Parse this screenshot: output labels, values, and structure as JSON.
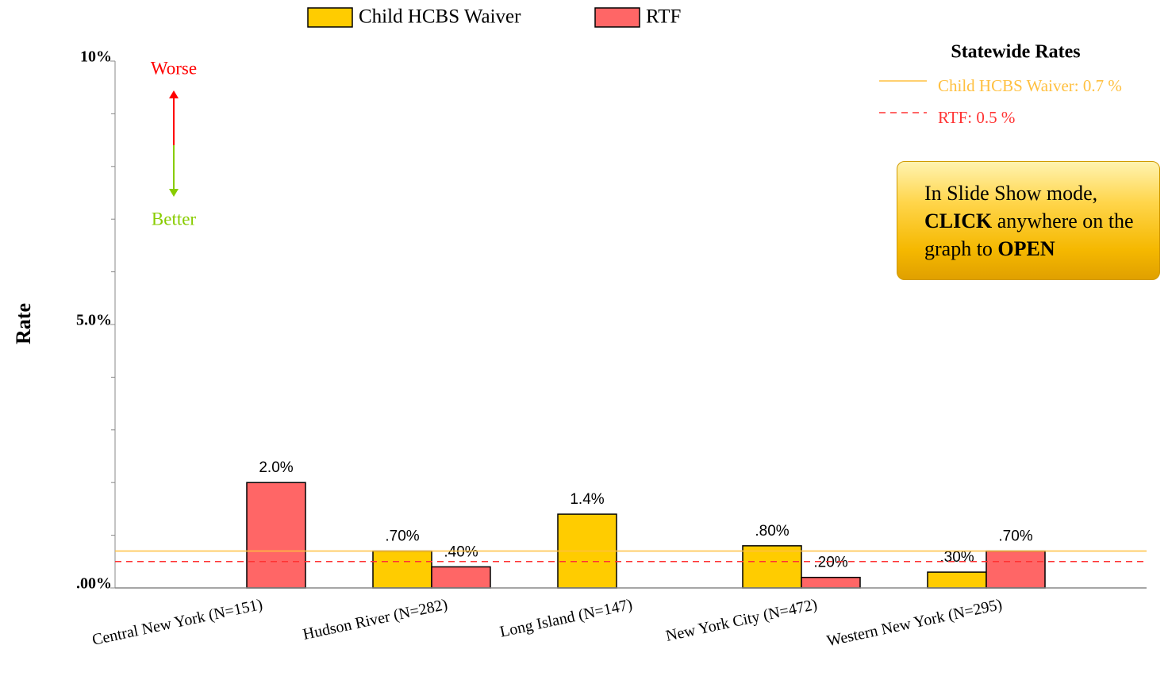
{
  "chart_data": {
    "type": "bar",
    "ylabel": "Rate",
    "categories": [
      "Central New York (N=151)",
      "Hudson River (N=282)",
      "Long Island (N=147)",
      "New York City (N=472)",
      "Western New York (N=295)"
    ],
    "series": [
      {
        "name": "Child HCBS Waiver",
        "color": "#ffcc00",
        "values": [
          null,
          0.7,
          1.4,
          0.8,
          0.3
        ],
        "value_labels": [
          null,
          ".70%",
          "1.4%",
          ".80%",
          ".30%"
        ]
      },
      {
        "name": "RTF",
        "color": "#ff6666",
        "values": [
          2.0,
          0.4,
          null,
          0.2,
          0.7
        ],
        "value_labels": [
          "2.0%",
          ".40%",
          null,
          ".20%",
          ".70%"
        ]
      }
    ],
    "ylim": [
      0,
      10
    ],
    "yticks": [
      {
        "value": 0,
        "label": ".00%"
      },
      {
        "value": 5,
        "label": "5.0%"
      },
      {
        "value": 10,
        "label": "10%"
      }
    ],
    "yminor_ticks": [
      1,
      2,
      3,
      4,
      6,
      7,
      8,
      9
    ],
    "reference_title": "Statewide Rates",
    "reference_lines": [
      {
        "name": "Child HCBS Waiver",
        "value": 0.7,
        "label": "Child HCBS Waiver: 0.7 %",
        "color": "#ffc040",
        "style": "solid"
      },
      {
        "name": "RTF",
        "value": 0.5,
        "label": "RTF: 0.5 %",
        "color": "#ff3333",
        "style": "dashed"
      }
    ],
    "annotations": [
      "Worse",
      "Better"
    ]
  },
  "note": [
    "In Slide Show mode,",
    "CLICK",
    "anywhere on",
    "the graph to",
    "OPEN"
  ]
}
